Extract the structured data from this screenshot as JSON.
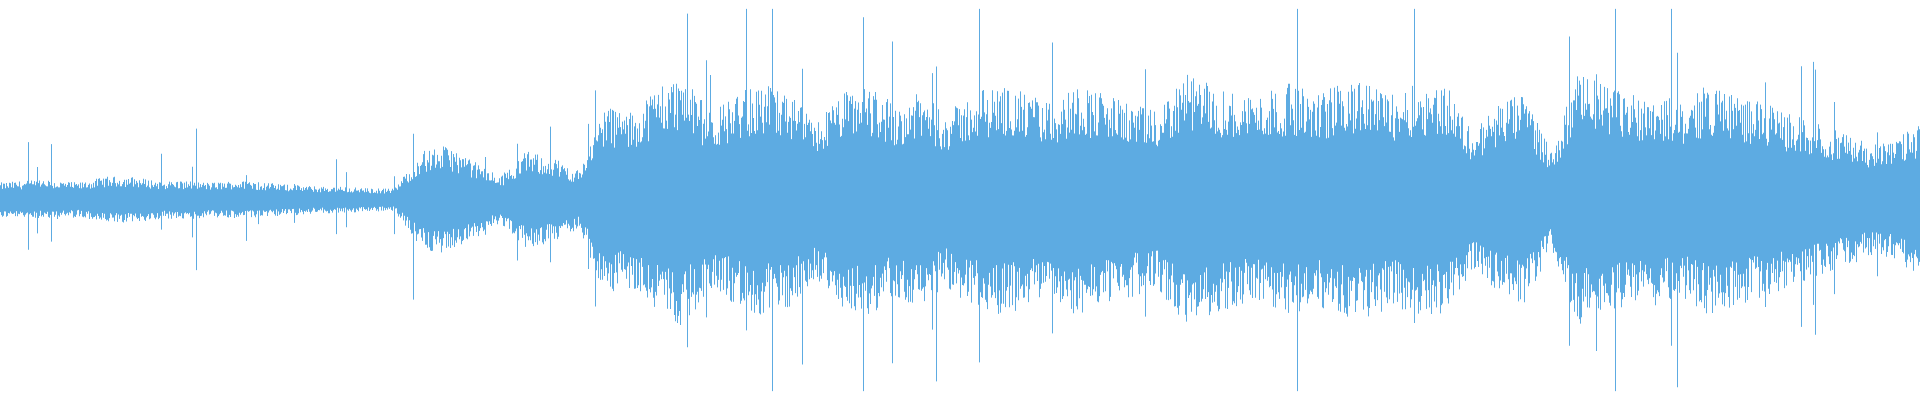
{
  "waveform": {
    "color": "#5dabe2",
    "background": "#ffffff",
    "amplitude_envelope": [
      0.09,
      0.1,
      0.1,
      0.09,
      0.12,
      0.12,
      0.1,
      0.1,
      0.09,
      0.1,
      0.09,
      0.08,
      0.07,
      0.07,
      0.06,
      0.06,
      0.25,
      0.28,
      0.2,
      0.12,
      0.25,
      0.22,
      0.15,
      0.5,
      0.45,
      0.6,
      0.65,
      0.45,
      0.55,
      0.6,
      0.55,
      0.4,
      0.55,
      0.6,
      0.5,
      0.55,
      0.45,
      0.55,
      0.6,
      0.55,
      0.5,
      0.6,
      0.55,
      0.5,
      0.45,
      0.65,
      0.6,
      0.55,
      0.55,
      0.6,
      0.55,
      0.6,
      0.6,
      0.55,
      0.6,
      0.6,
      0.35,
      0.5,
      0.55,
      0.25,
      0.65,
      0.6,
      0.55,
      0.55,
      0.5,
      0.6,
      0.55,
      0.5,
      0.45,
      0.4,
      0.35,
      0.3,
      0.3,
      0.4
    ]
  }
}
